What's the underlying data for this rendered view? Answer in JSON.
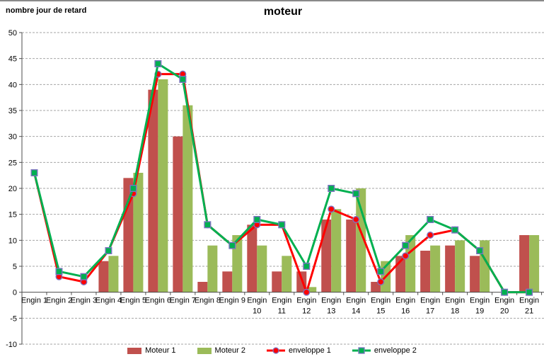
{
  "header": {
    "title": "moteur",
    "axis_title": "nombre jour de retard"
  },
  "chart_data": {
    "type": "bar",
    "subtype": "combo bar+line",
    "title": "moteur",
    "ylabel": "nombre jour de retard",
    "xlabel": "",
    "ylim": [
      -10,
      50
    ],
    "ytick_step": 5,
    "grid": "horizontal dashed",
    "legend_position": "bottom",
    "categories": [
      "Engin 1",
      "Engin 2",
      "Engin 3",
      "Engin 4",
      "Engin 5",
      "Engin 6",
      "Engin 7",
      "Engin 8",
      "Engin 9",
      "Engin 10",
      "Engin 11",
      "Engin 12",
      "Engin 13",
      "Engin 14",
      "Engin 15",
      "Engin 16",
      "Engin 17",
      "Engin 18",
      "Engin 19",
      "Engin 20",
      "Engin 21"
    ],
    "series": [
      {
        "name": "Moteur 1",
        "kind": "bar",
        "color": "#C0504D",
        "values": [
          0,
          0,
          0,
          6,
          22,
          39,
          30,
          2,
          4,
          13,
          4,
          4,
          14,
          14,
          2,
          7,
          8,
          9,
          7,
          0,
          11
        ]
      },
      {
        "name": "Moteur 2",
        "kind": "bar",
        "color": "#9BBB59",
        "values": [
          0,
          0,
          0,
          7,
          23,
          41,
          36,
          9,
          11,
          9,
          7,
          1,
          16,
          20,
          6,
          11,
          9,
          10,
          10,
          0,
          11
        ]
      },
      {
        "name": "enveloppe 1",
        "kind": "line",
        "color": "#FF0000",
        "marker": "circle",
        "values": [
          23,
          3,
          2,
          8,
          19,
          42,
          42,
          13,
          9,
          13,
          13,
          0,
          16,
          14,
          2,
          7,
          11,
          12,
          8,
          0,
          0
        ]
      },
      {
        "name": "enveloppe 2",
        "kind": "line",
        "color": "#00B050",
        "marker": "square",
        "values": [
          23,
          4,
          3,
          8,
          20,
          44,
          41,
          13,
          9,
          14,
          13,
          5,
          20,
          19,
          4,
          9,
          14,
          12,
          8,
          0,
          0
        ]
      }
    ],
    "style": {
      "grid_color": "#A6A6A6",
      "axis_color": "#4D4D4D",
      "tick_label_color": "#000000",
      "marker_border": "#7D73C0",
      "background": "#FFFFFF"
    }
  }
}
